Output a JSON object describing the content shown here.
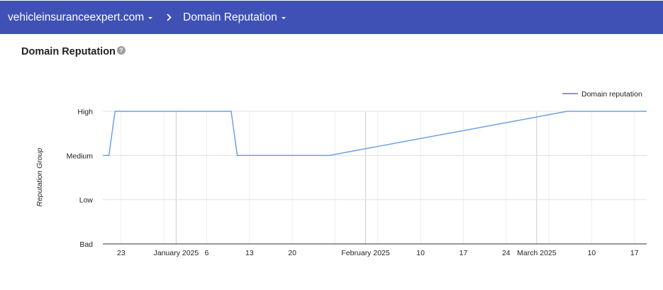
{
  "header": {
    "property": "vehicleinsuranceexpert.com",
    "section": "Domain Reputation"
  },
  "page": {
    "title": "Domain Reputation",
    "help_symbol": "?"
  },
  "colors": {
    "header_bg": "#3f51b5",
    "series_line": "#6f9fe8"
  },
  "chart_data": {
    "type": "line",
    "ylabel": "Reputation Group",
    "categories": [
      "Bad",
      "Low",
      "Medium",
      "High"
    ],
    "legend": {
      "position": "top-right",
      "label": "Domain reputation"
    },
    "x_ticks": [
      {
        "label": "23",
        "date": "2024-12-23"
      },
      {
        "label": "January 2025",
        "date": "2025-01-01"
      },
      {
        "label": "6",
        "date": "2025-01-06"
      },
      {
        "label": "13",
        "date": "2025-01-13"
      },
      {
        "label": "20",
        "date": "2025-01-20"
      },
      {
        "label": "February 2025",
        "date": "2025-02-01"
      },
      {
        "label": "10",
        "date": "2025-02-10"
      },
      {
        "label": "17",
        "date": "2025-02-17"
      },
      {
        "label": "24",
        "date": "2025-02-24"
      },
      {
        "label": "March 2025",
        "date": "2025-03-01"
      },
      {
        "label": "10",
        "date": "2025-03-10"
      },
      {
        "label": "17",
        "date": "2025-03-17"
      }
    ],
    "xlim": [
      "2024-12-20",
      "2025-03-19"
    ],
    "series": [
      {
        "name": "Domain reputation",
        "points": [
          {
            "x": "2024-12-20",
            "y": "Medium"
          },
          {
            "x": "2024-12-21",
            "y": "Medium"
          },
          {
            "x": "2024-12-22",
            "y": "High"
          },
          {
            "x": "2025-01-10",
            "y": "High"
          },
          {
            "x": "2025-01-11",
            "y": "Medium"
          },
          {
            "x": "2025-01-26",
            "y": "Medium"
          },
          {
            "x": "2025-03-06",
            "y": "High"
          },
          {
            "x": "2025-03-19",
            "y": "High"
          }
        ]
      }
    ]
  }
}
